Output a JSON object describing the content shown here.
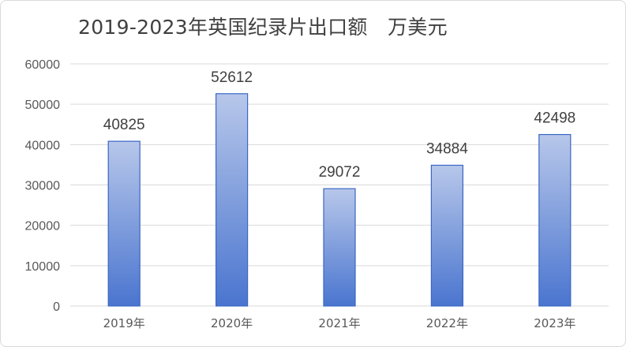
{
  "chart_data": {
    "type": "bar",
    "title": "2019-2023年英国纪录片出口额　万美元",
    "xlabel": "",
    "ylabel": "",
    "categories": [
      "2019年",
      "2020年",
      "2021年",
      "2022年",
      "2023年"
    ],
    "values": [
      40825,
      52612,
      29072,
      34884,
      42498
    ],
    "data_labels": [
      "40825",
      "52612",
      "29072",
      "34884",
      "42498"
    ],
    "ylim": [
      0,
      60000
    ],
    "yticks": [
      "0",
      "10000",
      "20000",
      "30000",
      "40000",
      "50000",
      "60000"
    ],
    "grid": "horizontal",
    "legend": "none",
    "colors": {
      "bar_top": "#b7c7ea",
      "bar_bottom": "#4a75cf",
      "bar_border": "#3b67c4",
      "grid": "#d9d9d9",
      "text": "#595959"
    }
  }
}
